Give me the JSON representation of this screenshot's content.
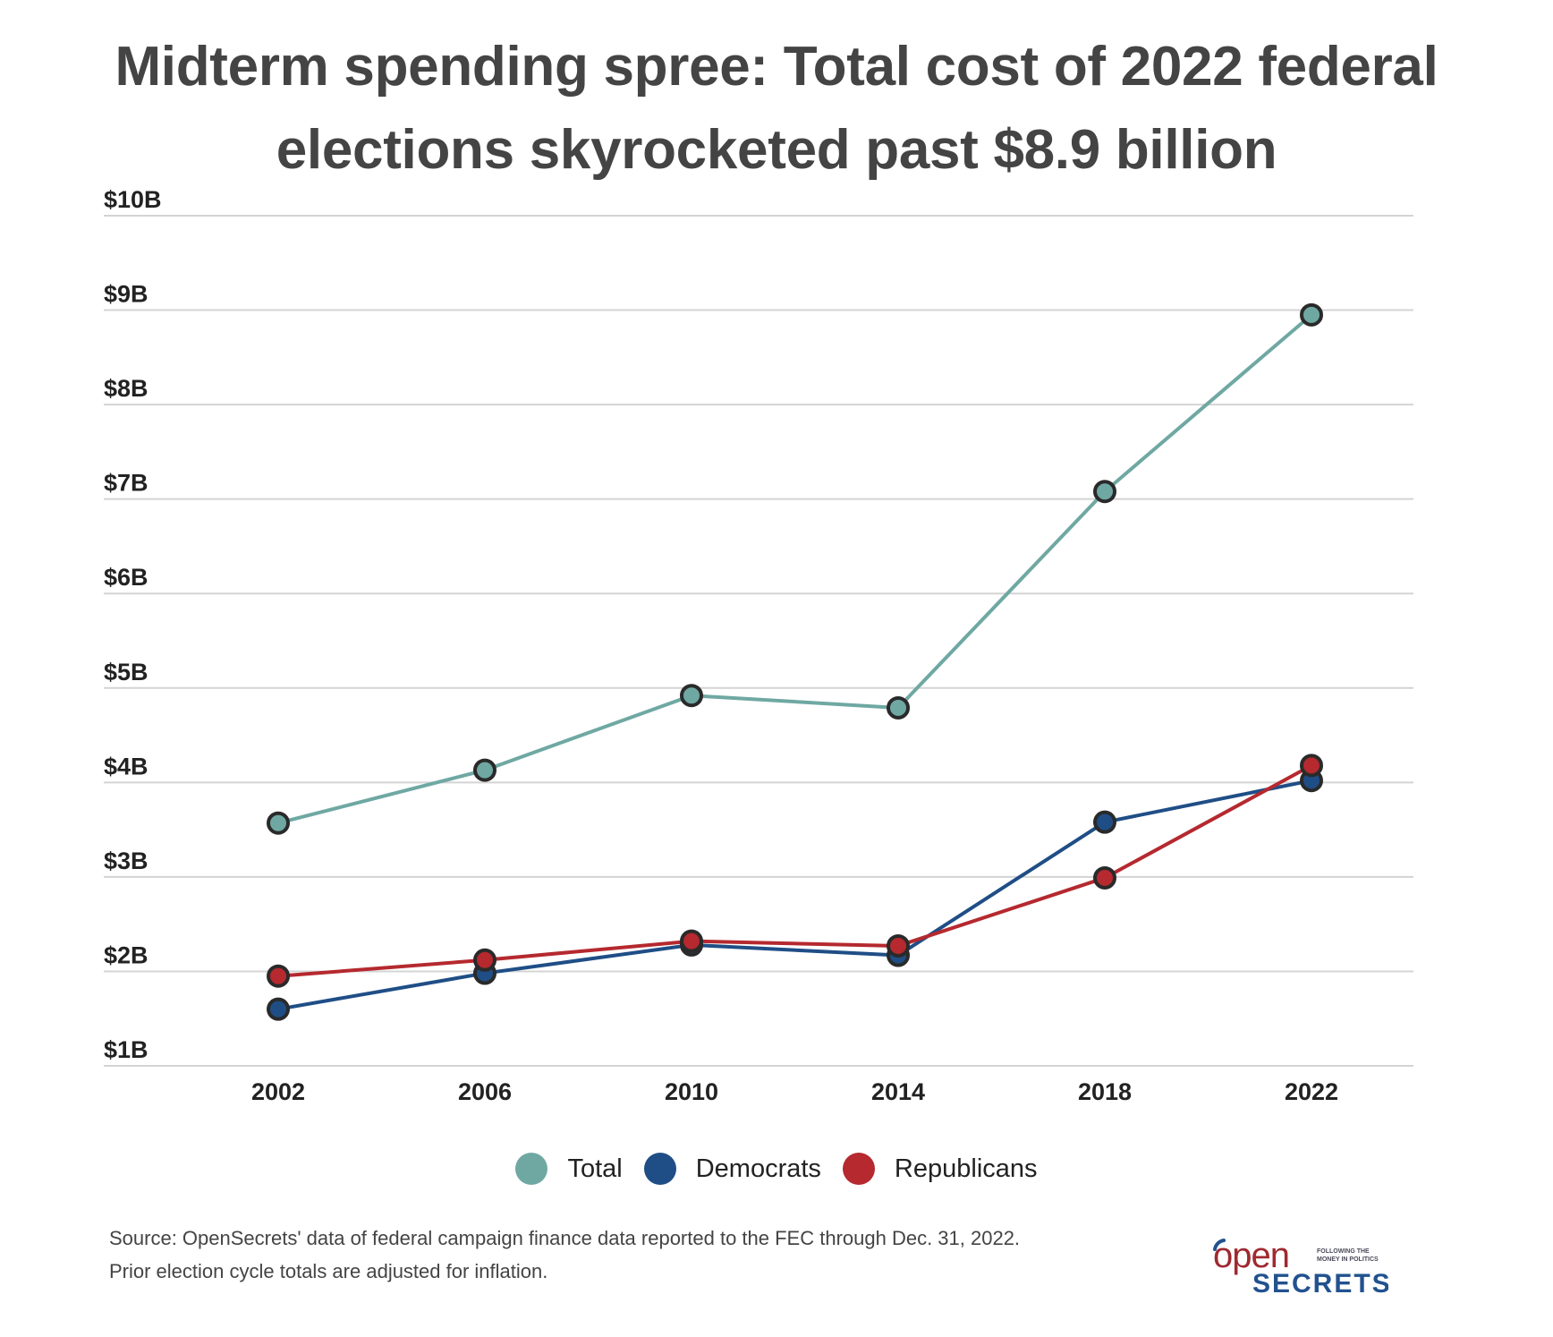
{
  "title": {
    "line1": "Midterm spending spree: Total cost of 2022 federal",
    "line2": "elections skyrocketed past $8.9 billion"
  },
  "chart_data": {
    "type": "line",
    "title": "Midterm spending spree: Total cost of 2022 federal elections skyrocketed past $8.9 billion",
    "xlabel": "",
    "ylabel": "",
    "x": [
      2002,
      2006,
      2010,
      2014,
      2018,
      2022
    ],
    "x_tick_labels": [
      "2002",
      "2006",
      "2010",
      "2014",
      "2018",
      "2022"
    ],
    "ylim": [
      1,
      10
    ],
    "y_ticks": [
      1,
      2,
      3,
      4,
      5,
      6,
      7,
      8,
      9,
      10
    ],
    "y_tick_labels": [
      "$1B",
      "$2B",
      "$3B",
      "$4B",
      "$5B",
      "$6B",
      "$7B",
      "$8B",
      "$9B",
      "$10B"
    ],
    "units": "billions of dollars",
    "grid": "horizontal",
    "legend_position": "bottom-center",
    "series": [
      {
        "name": "Total",
        "color": "#6fa8a3",
        "values": [
          3.57,
          4.13,
          4.92,
          4.79,
          7.08,
          8.95
        ]
      },
      {
        "name": "Democrats",
        "color": "#1f4e86",
        "values": [
          1.6,
          1.98,
          2.28,
          2.17,
          3.58,
          4.02
        ]
      },
      {
        "name": "Republicans",
        "color": "#b5292f",
        "values": [
          1.95,
          2.12,
          2.32,
          2.27,
          2.99,
          4.18
        ]
      }
    ]
  },
  "legend": [
    {
      "label": "Total",
      "color": "#6fa8a3"
    },
    {
      "label": "Democrats",
      "color": "#1f4e86"
    },
    {
      "label": "Republicans",
      "color": "#b5292f"
    }
  ],
  "source": {
    "line1": "Source: OpenSecrets' data of federal campaign finance data reported to the FEC through Dec. 31, 2022.",
    "line2": "Prior election cycle totals are adjusted for inflation."
  },
  "logo": {
    "word1": "open",
    "word2": "SECRETS",
    "tagline1": "FOLLOWING THE",
    "tagline2": "MONEY IN POLITICS",
    "red": "#9e2a30",
    "blue": "#22528f"
  }
}
